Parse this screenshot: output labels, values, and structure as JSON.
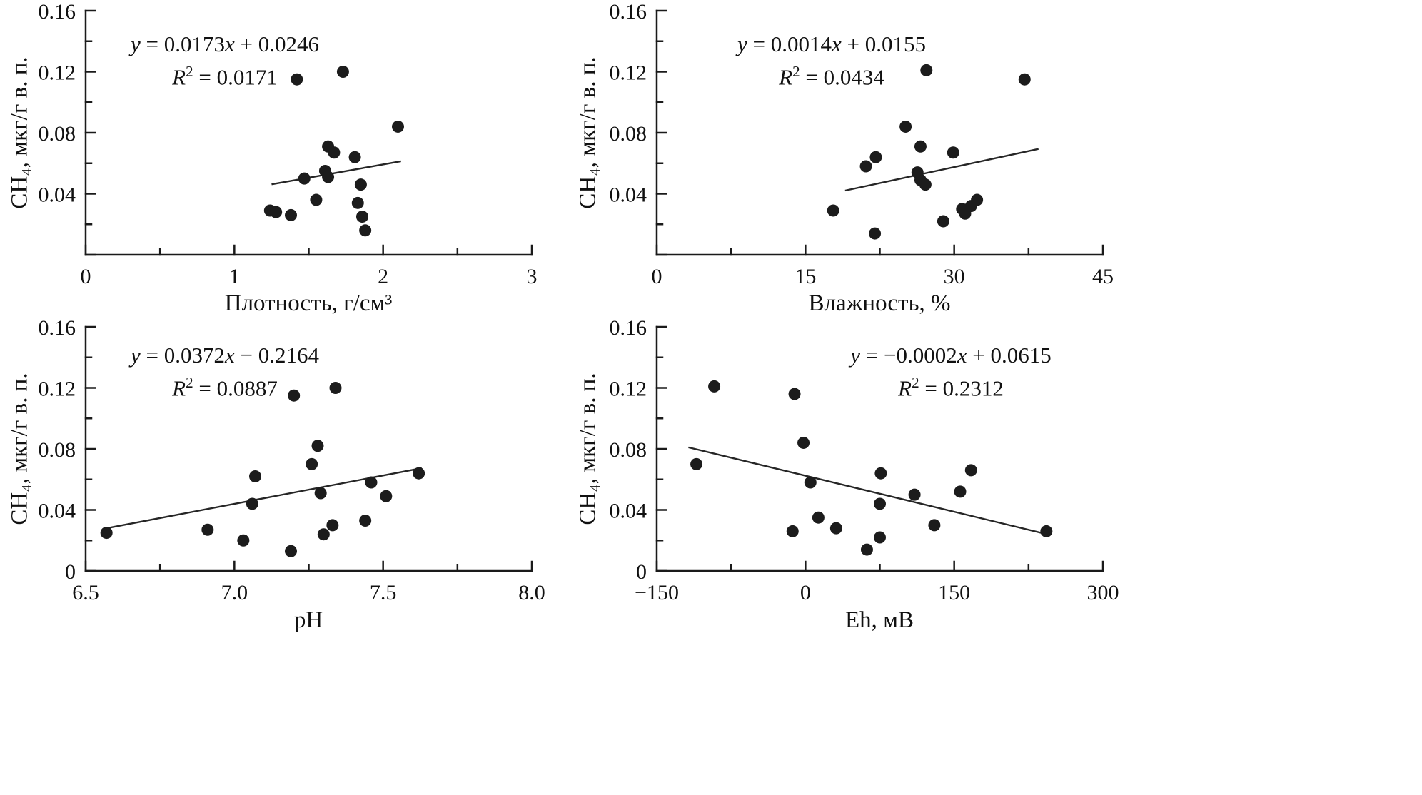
{
  "figure": {
    "background": "#ffffff",
    "ink_color": "#1a1a1a"
  },
  "chart_data": [
    {
      "type": "scatter",
      "panel_id": "density",
      "equation": "y = 0.0173x + 0.0246",
      "r_squared": "R² = 0.0171",
      "xlabel": "Плотность, г/см³",
      "ylabel": "CH₄, мкг/г в. п.",
      "xlim": [
        0,
        3
      ],
      "ylim": [
        0,
        0.16
      ],
      "xticks": [
        0,
        1,
        2,
        3
      ],
      "xtick_labels": [
        "0",
        "1",
        "2",
        "3"
      ],
      "yticks": [
        0,
        0.04,
        0.08,
        0.12,
        0.16
      ],
      "ytick_labels": [
        "",
        "0.04",
        "0.08",
        "0.12",
        "0.16"
      ],
      "grid": false,
      "legend": false,
      "points": [
        [
          1.42,
          0.115
        ],
        [
          1.73,
          0.12
        ],
        [
          2.1,
          0.084
        ],
        [
          1.63,
          0.071
        ],
        [
          1.67,
          0.067
        ],
        [
          1.81,
          0.064
        ],
        [
          1.47,
          0.05
        ],
        [
          1.61,
          0.055
        ],
        [
          1.63,
          0.051
        ],
        [
          1.85,
          0.046
        ],
        [
          1.55,
          0.036
        ],
        [
          1.24,
          0.029
        ],
        [
          1.28,
          0.028
        ],
        [
          1.38,
          0.026
        ],
        [
          1.83,
          0.034
        ],
        [
          1.86,
          0.025
        ],
        [
          1.88,
          0.016
        ]
      ],
      "trend": {
        "x": [
          1.25,
          2.12
        ],
        "y": [
          0.0462,
          0.0613
        ]
      }
    },
    {
      "type": "scatter",
      "panel_id": "moisture",
      "equation": "y = 0.0014x + 0.0155",
      "r_squared": "R² = 0.0434",
      "xlabel": "Влажность, %",
      "ylabel": "CH₄, мкг/г в. п.",
      "xlim": [
        0,
        45
      ],
      "ylim": [
        0,
        0.16
      ],
      "xticks": [
        0,
        15,
        30,
        45
      ],
      "xtick_labels": [
        "0",
        "15",
        "30",
        "45"
      ],
      "yticks": [
        0,
        0.04,
        0.08,
        0.12,
        0.16
      ],
      "ytick_labels": [
        "",
        "0.04",
        "0.08",
        "0.12",
        "0.16"
      ],
      "grid": false,
      "legend": false,
      "points": [
        [
          27.2,
          0.121
        ],
        [
          37.1,
          0.115
        ],
        [
          25.1,
          0.084
        ],
        [
          26.6,
          0.071
        ],
        [
          22.1,
          0.064
        ],
        [
          29.9,
          0.067
        ],
        [
          21.1,
          0.058
        ],
        [
          26.3,
          0.054
        ],
        [
          26.6,
          0.049
        ],
        [
          27.1,
          0.046
        ],
        [
          32.3,
          0.036
        ],
        [
          31.7,
          0.032
        ],
        [
          17.8,
          0.029
        ],
        [
          30.8,
          0.03
        ],
        [
          31.1,
          0.027
        ],
        [
          28.9,
          0.022
        ],
        [
          22.0,
          0.014
        ]
      ],
      "trend": {
        "x": [
          19.0,
          38.5
        ],
        "y": [
          0.0421,
          0.0694
        ]
      }
    },
    {
      "type": "scatter",
      "panel_id": "ph",
      "equation": "y = 0.0372x − 0.2164",
      "r_squared": "R² = 0.0887",
      "xlabel": "pH",
      "ylabel": "CH₄, мкг/г в. п.",
      "xlim": [
        6.5,
        8.0
      ],
      "ylim": [
        0,
        0.16
      ],
      "xticks": [
        6.5,
        7.0,
        7.5,
        8.0
      ],
      "xtick_labels": [
        "6.5",
        "7.0",
        "7.5",
        "8.0"
      ],
      "yticks": [
        0,
        0.04,
        0.08,
        0.12,
        0.16
      ],
      "ytick_labels": [
        "0",
        "0.04",
        "0.08",
        "0.12",
        "0.16"
      ],
      "grid": false,
      "legend": false,
      "points": [
        [
          7.2,
          0.115
        ],
        [
          7.34,
          0.12
        ],
        [
          7.28,
          0.082
        ],
        [
          7.07,
          0.062
        ],
        [
          7.26,
          0.07
        ],
        [
          7.62,
          0.064
        ],
        [
          7.46,
          0.058
        ],
        [
          7.29,
          0.051
        ],
        [
          7.51,
          0.049
        ],
        [
          7.06,
          0.044
        ],
        [
          7.44,
          0.033
        ],
        [
          7.33,
          0.03
        ],
        [
          6.91,
          0.027
        ],
        [
          7.3,
          0.024
        ],
        [
          6.57,
          0.025
        ],
        [
          7.03,
          0.02
        ],
        [
          7.19,
          0.013
        ]
      ],
      "trend": {
        "x": [
          6.57,
          7.63
        ],
        "y": [
          0.028,
          0.0674
        ]
      }
    },
    {
      "type": "scatter",
      "panel_id": "eh",
      "equation": "y = −0.0002x + 0.0615",
      "r_squared": "R² = 0.2312",
      "xlabel": "Eh, мВ",
      "ylabel": "CH₄, мкг/г в. п.",
      "xlim": [
        -150,
        300
      ],
      "ylim": [
        0,
        0.16
      ],
      "xticks": [
        -150,
        0,
        150,
        300
      ],
      "xtick_labels": [
        "−150",
        "0",
        "150",
        "300"
      ],
      "yticks": [
        0,
        0.04,
        0.08,
        0.12,
        0.16
      ],
      "ytick_labels": [
        "0",
        "0.04",
        "0.08",
        "0.12",
        "0.16"
      ],
      "grid": false,
      "legend": false,
      "points": [
        [
          -92,
          0.121
        ],
        [
          -11,
          0.116
        ],
        [
          -2,
          0.084
        ],
        [
          -110,
          0.07
        ],
        [
          76,
          0.064
        ],
        [
          167,
          0.066
        ],
        [
          5,
          0.058
        ],
        [
          156,
          0.052
        ],
        [
          110,
          0.05
        ],
        [
          75,
          0.044
        ],
        [
          130,
          0.03
        ],
        [
          13,
          0.035
        ],
        [
          31,
          0.028
        ],
        [
          -13,
          0.026
        ],
        [
          243,
          0.026
        ],
        [
          75,
          0.022
        ],
        [
          62,
          0.014
        ]
      ],
      "trend": {
        "x": [
          -118,
          244
        ],
        "y": [
          0.081,
          0.024
        ]
      }
    }
  ]
}
